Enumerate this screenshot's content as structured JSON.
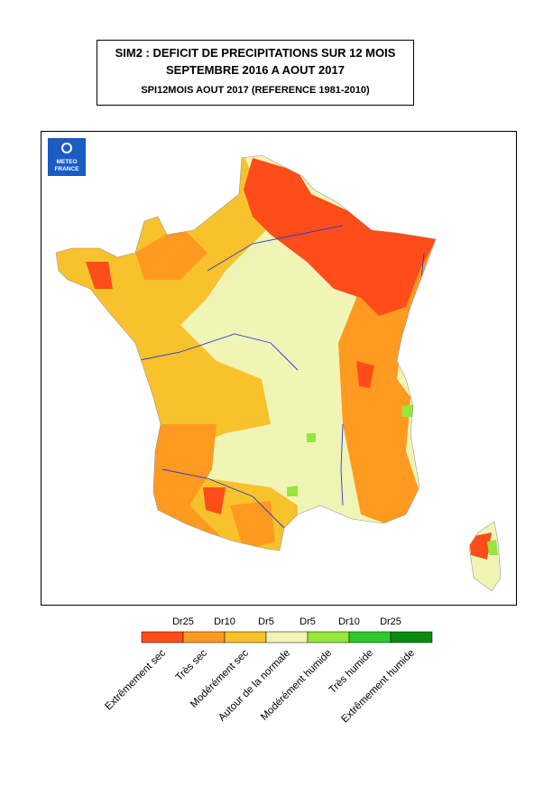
{
  "header": {
    "title_lines": [
      "SIM2 : DEFICIT DE PRECIPITATIONS SUR 12 MOIS",
      "SEPTEMBRE 2016 A AOUT 2017"
    ],
    "subtitle": "SPI12MOIS AOUT 2017 (REFERENCE 1981-2010)"
  },
  "logo": {
    "lines": [
      "METEO",
      "FRANCE"
    ]
  },
  "legend": {
    "thresholds": [
      "Dr25",
      "Dr10",
      "Dr5",
      "Dr5",
      "Dr10",
      "Dr25"
    ],
    "classes": [
      {
        "label": "Extrêmement sec",
        "color": "#ff4d1a"
      },
      {
        "label": "Très sec",
        "color": "#ff9a20"
      },
      {
        "label": "Modérément sec",
        "color": "#f8c22c"
      },
      {
        "label": "Autour de la normale",
        "color": "#f0f5b6"
      },
      {
        "label": "Modérément humide",
        "color": "#96e63c"
      },
      {
        "label": "Très humide",
        "color": "#30c830"
      },
      {
        "label": "Extrêmement humide",
        "color": "#0b8a12"
      }
    ]
  }
}
